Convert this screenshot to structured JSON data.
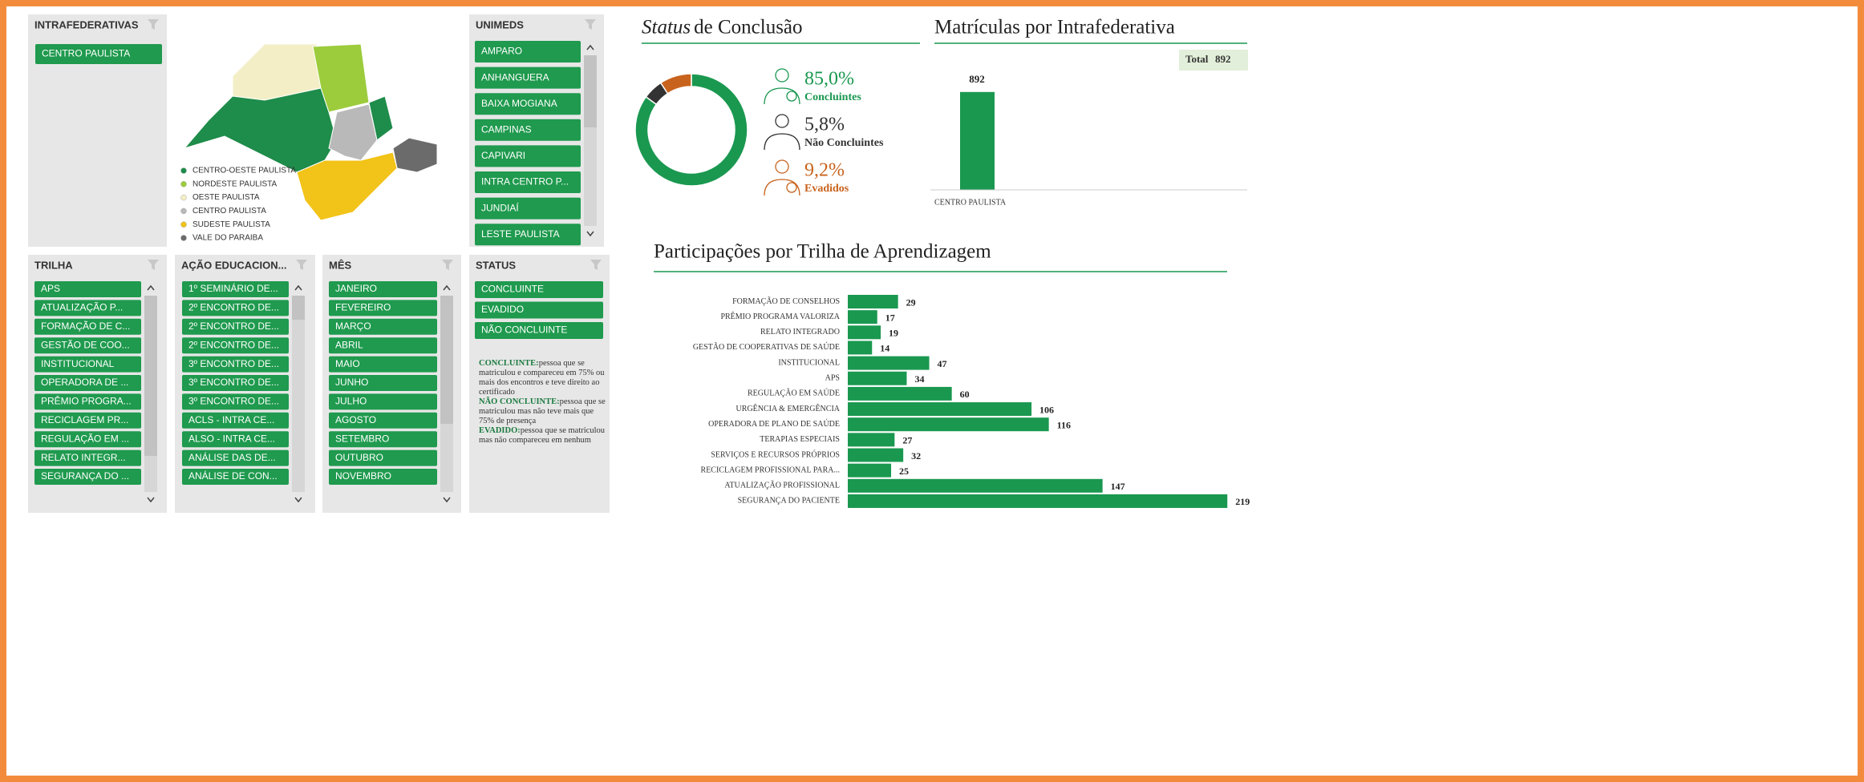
{
  "intrafederativas": {
    "title": "INTRAFEDERATIVAS",
    "items": [
      "CENTRO PAULISTA"
    ]
  },
  "map_legend": [
    {
      "label": "CENTRO-OESTE PAULISTA",
      "color": "#1e8c4a"
    },
    {
      "label": "NORDESTE PAULISTA",
      "color": "#9ccc3c"
    },
    {
      "label": "OESTE PAULISTA",
      "color": "#f3eec6"
    },
    {
      "label": "CENTRO PAULISTA",
      "color": "#b9b9b9"
    },
    {
      "label": "SUDESTE PAULISTA",
      "color": "#f2c318"
    },
    {
      "label": "VALE DO PARAIBA",
      "color": "#6b6b6b"
    }
  ],
  "unimeds": {
    "title": "UNIMEDS",
    "items": [
      "AMPARO",
      "ANHANGUERA",
      "BAIXA MOGIANA",
      "CAMPINAS",
      "CAPIVARI",
      "INTRA CENTRO P...",
      "JUNDIAÍ",
      "LESTE PAULISTA"
    ]
  },
  "trilha": {
    "title": "TRILHA",
    "items": [
      "APS",
      "ATUALIZAÇÃO P...",
      "FORMAÇÃO DE C...",
      "GESTÃO DE COO...",
      "INSTITUCIONAL",
      "OPERADORA DE ...",
      "PRÊMIO PROGRA...",
      "RECICLAGEM PR...",
      "REGULAÇÃO EM ...",
      "RELATO INTEGR...",
      "SEGURANÇA DO ..."
    ]
  },
  "acao_educacional": {
    "title": "AÇÃO EDUCACION...",
    "items": [
      "1º SEMINÁRIO DE...",
      "2º ENCONTRO DE...",
      "2º ENCONTRO DE...",
      "2º ENCONTRO DE...",
      "3º ENCONTRO DE...",
      "3º ENCONTRO DE...",
      "3º ENCONTRO DE...",
      "ACLS - INTRA CE...",
      "ALSO - INTRA CE...",
      "ANÁLISE DAS DE...",
      "ANÁLISE DE CON..."
    ]
  },
  "mes": {
    "title": "MÊS",
    "items": [
      "JANEIRO",
      "FEVEREIRO",
      "MARÇO",
      "ABRIL",
      "MAIO",
      "JUNHO",
      "JULHO",
      "AGOSTO",
      "SETEMBRO",
      "OUTUBRO",
      "NOVEMBRO"
    ]
  },
  "status": {
    "title": "STATUS",
    "items": [
      "CONCLUINTE",
      "EVADIDO",
      "NÃO CONCLUINTE"
    ],
    "notes": [
      {
        "term": "CONCLUINTE:",
        "text": "pessoa que se matriculou e compareceu em 75% ou mais dos encontros e teve direito ao certificado"
      },
      {
        "term": "NÃO CONCLUINTE:",
        "text": "pessoa que se matriculou mas não teve mais que 75% de presença"
      },
      {
        "term": "EVADIDO:",
        "text": "pessoa que se matriculou mas não compareceu em nenhum"
      }
    ]
  },
  "status_chart": {
    "type": "donut",
    "title_em": "Status",
    "title": "de Conclusão",
    "series": [
      {
        "name": "Concluintes",
        "color": "#1a9850",
        "values": [
          85.0
        ],
        "value_labels": [
          "85,0%"
        ]
      },
      {
        "name": "Não Concluintes",
        "color": "#333333",
        "values": [
          5.8
        ],
        "value_labels": [
          "5,8%"
        ]
      },
      {
        "name": "Evadidos",
        "color": "#c8631d",
        "values": [
          9.2
        ],
        "value_labels": [
          "9,2%"
        ]
      }
    ]
  },
  "matriculas_chart": {
    "type": "bar",
    "title": "Matrículas por Intrafederativa",
    "total_label": "Total",
    "total": 892,
    "categories": [
      "CENTRO PAULISTA"
    ],
    "values": [
      892
    ],
    "color": "#1a9850",
    "ylim": [
      0,
      1000
    ]
  },
  "participacoes_chart": {
    "type": "barh",
    "title": "Participações por Trilha de Aprendizagem",
    "categories": [
      "FORMAÇÃO DE CONSELHOS",
      "PRÊMIO PROGRAMA VALORIZA",
      "RELATO INTEGRADO",
      "GESTÃO DE COOPERATIVAS DE SAÚDE",
      "INSTITUCIONAL",
      "APS",
      "REGULAÇÃO EM SAÚDE",
      "URGÊNCIA & EMERGÊNCIA",
      "OPERADORA DE PLANO DE SAÚDE",
      "TERAPIAS ESPECIAIS",
      "SERVIÇOS E RECURSOS PRÓPRIOS",
      "RECICLAGEM PROFISSIONAL PARA...",
      "ATUALIZAÇÃO PROFISSIONAL",
      "SEGURANÇA DO PACIENTE"
    ],
    "values": [
      29,
      17,
      19,
      14,
      47,
      34,
      60,
      106,
      116,
      27,
      32,
      25,
      147,
      219
    ],
    "color": "#1a9850",
    "xlim": [
      0,
      230
    ]
  }
}
